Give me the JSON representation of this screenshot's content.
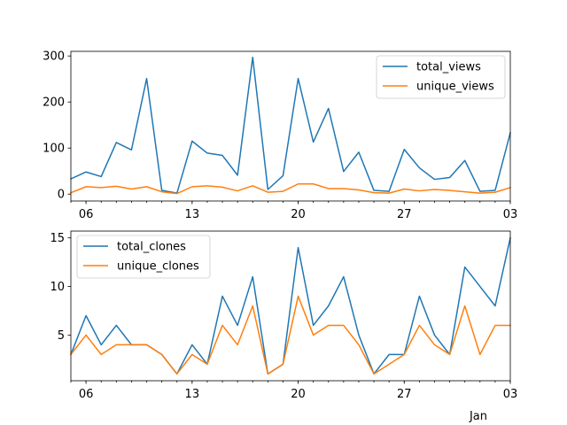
{
  "chart_data": [
    {
      "type": "line",
      "x": [
        "2019-12-05",
        "2019-12-06",
        "2019-12-07",
        "2019-12-08",
        "2019-12-09",
        "2019-12-10",
        "2019-12-11",
        "2019-12-12",
        "2019-12-13",
        "2019-12-14",
        "2019-12-15",
        "2019-12-16",
        "2019-12-17",
        "2019-12-18",
        "2019-12-19",
        "2019-12-20",
        "2019-12-21",
        "2019-12-22",
        "2019-12-23",
        "2019-12-24",
        "2019-12-25",
        "2019-12-26",
        "2019-12-27",
        "2019-12-28",
        "2019-12-29",
        "2019-12-30",
        "2019-12-31",
        "2020-01-01",
        "2020-01-02",
        "2020-01-03"
      ],
      "x_tick_labels": [
        "06",
        "13",
        "20",
        "27",
        "03"
      ],
      "x_tick_dates": [
        "2019-12-06",
        "2019-12-13",
        "2019-12-20",
        "2019-12-27",
        "2020-01-03"
      ],
      "ylim": [
        -15,
        310
      ],
      "y_ticks": [
        0,
        100,
        200,
        300
      ],
      "legend_position": "upper right",
      "series": [
        {
          "name": "total_views",
          "color": "#1f77b4",
          "values": [
            33,
            48,
            38,
            112,
            96,
            251,
            8,
            2,
            115,
            89,
            84,
            41,
            297,
            10,
            40,
            251,
            113,
            186,
            49,
            91,
            8,
            6,
            97,
            57,
            32,
            36,
            73,
            6,
            8,
            133
          ]
        },
        {
          "name": "unique_views",
          "color": "#ff7f0e",
          "values": [
            3,
            16,
            14,
            17,
            11,
            16,
            5,
            1,
            16,
            18,
            15,
            7,
            18,
            4,
            6,
            22,
            22,
            12,
            12,
            9,
            3,
            2,
            11,
            7,
            10,
            8,
            5,
            2,
            4,
            14
          ]
        }
      ]
    },
    {
      "type": "line",
      "x": [
        "2019-12-05",
        "2019-12-06",
        "2019-12-07",
        "2019-12-08",
        "2019-12-09",
        "2019-12-10",
        "2019-12-11",
        "2019-12-12",
        "2019-12-13",
        "2019-12-14",
        "2019-12-15",
        "2019-12-16",
        "2019-12-17",
        "2019-12-18",
        "2019-12-19",
        "2019-12-20",
        "2019-12-21",
        "2019-12-22",
        "2019-12-23",
        "2019-12-24",
        "2019-12-25",
        "2019-12-26",
        "2019-12-27",
        "2019-12-28",
        "2019-12-29",
        "2019-12-30",
        "2019-12-31",
        "2020-01-01",
        "2020-01-02",
        "2020-01-03"
      ],
      "x_tick_labels": [
        "06",
        "13",
        "20",
        "27",
        "03"
      ],
      "x_tick_dates": [
        "2019-12-06",
        "2019-12-13",
        "2019-12-20",
        "2019-12-27",
        "2020-01-03"
      ],
      "xlabel": "Jan",
      "ylim": [
        0.3,
        15.7
      ],
      "y_ticks": [
        5,
        10,
        15
      ],
      "legend_position": "upper left",
      "series": [
        {
          "name": "total_clones",
          "color": "#1f77b4",
          "values": [
            3,
            7,
            4,
            6,
            4,
            4,
            3,
            1,
            4,
            2,
            9,
            6,
            11,
            1,
            2,
            14,
            6,
            8,
            11,
            5,
            1,
            3,
            3,
            9,
            5,
            3,
            12,
            10,
            8,
            15
          ]
        },
        {
          "name": "unique_clones",
          "color": "#ff7f0e",
          "values": [
            3,
            5,
            3,
            4,
            4,
            4,
            3,
            1,
            3,
            2,
            6,
            4,
            8,
            1,
            2,
            9,
            5,
            6,
            6,
            4,
            1,
            2,
            3,
            6,
            4,
            3,
            8,
            3,
            6,
            6
          ]
        }
      ]
    }
  ]
}
